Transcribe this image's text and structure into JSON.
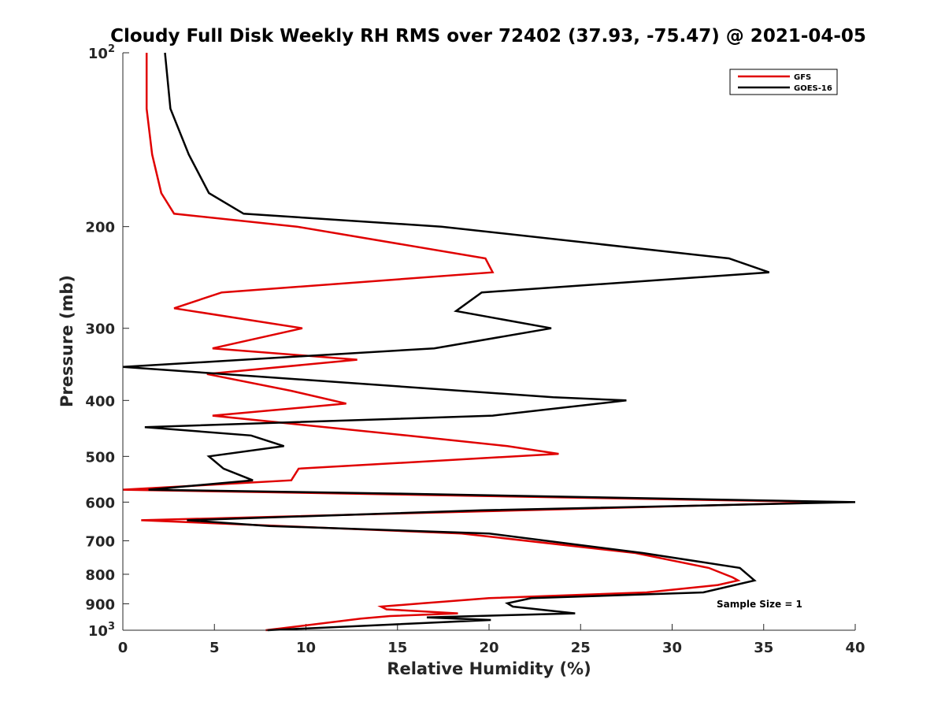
{
  "chart_data": {
    "type": "line",
    "title": "Cloudy Full Disk Weekly RH RMS over 72402 (37.93, -75.47) @ 2021-04-05",
    "xlabel": "Relative Humidity (%)",
    "ylabel": "Pressure (mb)",
    "xlim": [
      0,
      40
    ],
    "ylim": [
      100,
      1000
    ],
    "y_scale": "log",
    "y_reversed": true,
    "x_ticks": [
      "0",
      "5",
      "10",
      "15",
      "20",
      "25",
      "30",
      "35",
      "40"
    ],
    "y_ticks": [
      {
        "value": 100,
        "base": "10",
        "exp": "2"
      },
      {
        "value": 200,
        "label": "200"
      },
      {
        "value": 300,
        "label": "300"
      },
      {
        "value": 400,
        "label": "400"
      },
      {
        "value": 500,
        "label": "500"
      },
      {
        "value": 600,
        "label": "600"
      },
      {
        "value": 700,
        "label": "700"
      },
      {
        "value": 800,
        "label": "800"
      },
      {
        "value": 900,
        "label": "900"
      },
      {
        "value": 1000,
        "base": "10",
        "exp": "3"
      }
    ],
    "legend_position": "top-right",
    "annotation": "Sample Size = 1",
    "series": [
      {
        "name": "GFS",
        "color": "#e00000",
        "points": [
          [
            1.3,
            100
          ],
          [
            1.3,
            125
          ],
          [
            1.6,
            150
          ],
          [
            2.1,
            175
          ],
          [
            2.8,
            190
          ],
          [
            9.5,
            200
          ],
          [
            19.8,
            227
          ],
          [
            20.2,
            240
          ],
          [
            5.4,
            260
          ],
          [
            2.8,
            277
          ],
          [
            9.8,
            300
          ],
          [
            4.9,
            325
          ],
          [
            12.8,
            340
          ],
          [
            4.6,
            360
          ],
          [
            9.2,
            385
          ],
          [
            12.2,
            405
          ],
          [
            4.9,
            425
          ],
          [
            15.5,
            460
          ],
          [
            21.0,
            480
          ],
          [
            23.8,
            495
          ],
          [
            9.6,
            525
          ],
          [
            9.2,
            550
          ],
          [
            0.0,
            571
          ],
          [
            38.8,
            600
          ],
          [
            1.0,
            645
          ],
          [
            18.5,
            680
          ],
          [
            28.0,
            735
          ],
          [
            32.0,
            780
          ],
          [
            33.3,
            810
          ],
          [
            33.6,
            820
          ],
          [
            32.5,
            835
          ],
          [
            28.6,
            860
          ],
          [
            20.0,
            880
          ],
          [
            16.4,
            898
          ],
          [
            14.1,
            910
          ],
          [
            14.4,
            920
          ],
          [
            18.3,
            935
          ],
          [
            14.6,
            945
          ],
          [
            13.0,
            955
          ],
          [
            7.8,
            1000
          ]
        ]
      },
      {
        "name": "GOES-16",
        "color": "#000000",
        "points": [
          [
            2.3,
            100
          ],
          [
            2.6,
            125
          ],
          [
            3.6,
            150
          ],
          [
            4.7,
            175
          ],
          [
            6.6,
            190
          ],
          [
            17.4,
            200
          ],
          [
            33.1,
            227
          ],
          [
            35.3,
            240
          ],
          [
            19.6,
            260
          ],
          [
            18.2,
            280
          ],
          [
            23.4,
            300
          ],
          [
            17.0,
            325
          ],
          [
            0.0,
            350
          ],
          [
            23.5,
            395
          ],
          [
            27.5,
            400
          ],
          [
            20.2,
            425
          ],
          [
            1.2,
            445
          ],
          [
            7.0,
            460
          ],
          [
            8.8,
            480
          ],
          [
            4.7,
            500
          ],
          [
            5.5,
            525
          ],
          [
            7.1,
            550
          ],
          [
            1.4,
            571
          ],
          [
            15.0,
            580
          ],
          [
            40.0,
            600
          ],
          [
            19.6,
            620
          ],
          [
            3.5,
            645
          ],
          [
            8.0,
            660
          ],
          [
            20.0,
            680
          ],
          [
            28.4,
            735
          ],
          [
            33.7,
            780
          ],
          [
            34.5,
            820
          ],
          [
            31.7,
            860
          ],
          [
            22.3,
            880
          ],
          [
            21.0,
            898
          ],
          [
            21.3,
            910
          ],
          [
            24.7,
            935
          ],
          [
            16.6,
            950
          ],
          [
            20.1,
            960
          ],
          [
            7.9,
            1000
          ]
        ]
      }
    ]
  }
}
